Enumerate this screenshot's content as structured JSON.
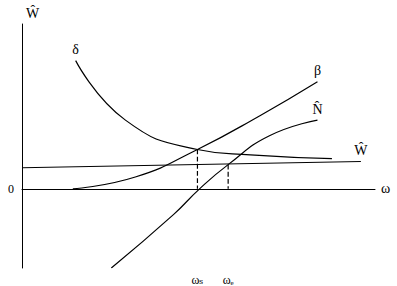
{
  "chart_data": {
    "type": "line",
    "x_label": "ω",
    "y_label": "Ŵ",
    "xlim": [
      0,
      100
    ],
    "ylim": [
      -48,
      100
    ],
    "xticks": [
      {
        "value": 49.7,
        "label": "ωₛ"
      },
      {
        "value": 58.4,
        "label": "ωₑ"
      }
    ],
    "yticks": [
      0
    ],
    "grid": false,
    "color": "#000000",
    "series": [
      {
        "name": "δ",
        "color": "#000000",
        "line_style": "solid",
        "x": [
          87.8,
          64.7,
          49.7,
          29.3,
          15.2
        ],
        "values": [
          18.3,
          20.6,
          23.9,
          41.7,
          77.8
        ]
      },
      {
        "name": "β",
        "color": "#000000",
        "line_style": "solid",
        "x": [
          14.4,
          32.1,
          49.7,
          67.4,
          83.7
        ],
        "values": [
          0,
          7.2,
          23.9,
          44.4,
          65
        ]
      },
      {
        "name": "N̂",
        "color": "#000000",
        "line_style": "solid",
        "x": [
          25.3,
          42.9,
          50.3,
          58.4,
          70.1,
          83.7
        ],
        "values": [
          -48,
          -15.6,
          0,
          14.7,
          32.2,
          41.7
        ]
      },
      {
        "name": "Ŵ",
        "color": "#000000",
        "line_style": "solid",
        "x": [
          0,
          96
        ],
        "values": [
          12.8,
          16.6
        ]
      },
      {
        "color": "#000000",
        "line_style": "dashed",
        "x": [
          49.7,
          49.7
        ],
        "values": [
          23.9,
          0
        ]
      },
      {
        "color": "#000000",
        "line_style": "dashed",
        "x": [
          58.4,
          58.4
        ],
        "values": [
          14.7,
          0
        ]
      }
    ]
  }
}
